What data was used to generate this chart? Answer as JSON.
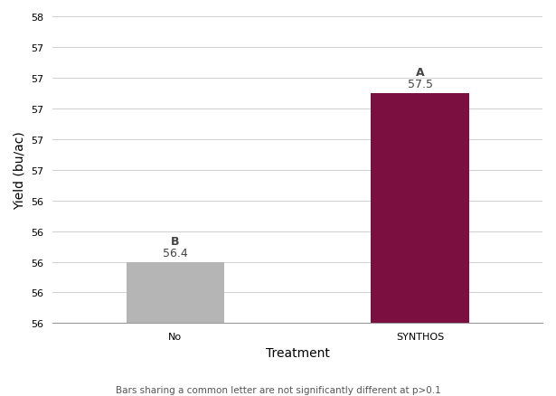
{
  "categories": [
    "No",
    "SYNTHOS"
  ],
  "values": [
    56.4,
    57.5
  ],
  "bar_colors": [
    "#b5b5b5",
    "#7b1040"
  ],
  "bar_width": 0.4,
  "xlabel": "Treatment",
  "ylabel": "Yield (bu/ac)",
  "ylim": [
    56.0,
    58.0
  ],
  "ytick_start": 56.0,
  "ytick_end": 58.0,
  "ytick_interval": 0.2,
  "significance_letters": [
    "B",
    "A"
  ],
  "value_labels": [
    "56.4",
    "57.5"
  ],
  "footnote": "Bars sharing a common letter are not significantly different at p>0.1",
  "title": "",
  "background_color": "#ffffff",
  "grid_color": "#d0d0d0",
  "label_fontsize": 10,
  "tick_fontsize": 8,
  "letter_fontsize": 9,
  "value_fontsize": 9,
  "footnote_fontsize": 7.5,
  "xlabel_fontsize": 10
}
